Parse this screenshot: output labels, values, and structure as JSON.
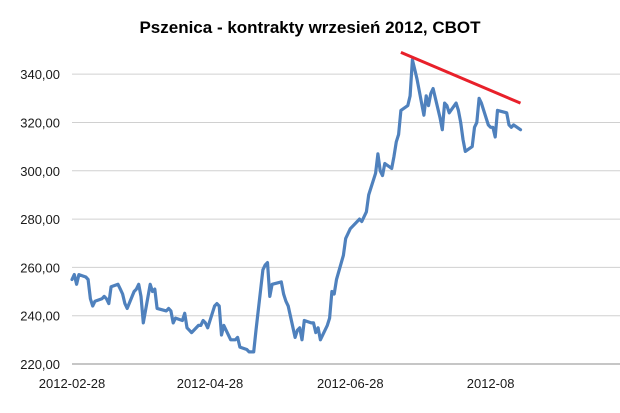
{
  "chart_data": {
    "type": "line",
    "title": "Pszenica - kontrakty wrzesień 2012, CBOT",
    "xlabel": "",
    "ylabel": "",
    "ylim": [
      220,
      350
    ],
    "y_ticks": [
      "220,00",
      "240,00",
      "260,00",
      "280,00",
      "300,00",
      "320,00",
      "340,00"
    ],
    "y_tick_values": [
      220,
      240,
      260,
      280,
      300,
      320,
      340
    ],
    "x_ticks": [
      "2012-02-28",
      "2012-04-28",
      "2012-06-28",
      "2012-08"
    ],
    "x_tick_dates": [
      "2012-02-28",
      "2012-04-28",
      "2012-06-28",
      "2012-08-28"
    ],
    "grid": "horizontal",
    "legend": "none",
    "colors": {
      "series": "#4f81bd",
      "trendline": "#e8202a",
      "grid": "#d0d0d0",
      "axis": "#8c8c8c"
    },
    "series": [
      {
        "values": [
          [
            "2012-02-28",
            255
          ],
          [
            "2012-02-29",
            257
          ],
          [
            "2012-03-01",
            253
          ],
          [
            "2012-03-02",
            257
          ],
          [
            "2012-03-05",
            256
          ],
          [
            "2012-03-06",
            255
          ],
          [
            "2012-03-07",
            247
          ],
          [
            "2012-03-08",
            244
          ],
          [
            "2012-03-09",
            246
          ],
          [
            "2012-03-12",
            247
          ],
          [
            "2012-03-13",
            248
          ],
          [
            "2012-03-14",
            247
          ],
          [
            "2012-03-15",
            245
          ],
          [
            "2012-03-16",
            252
          ],
          [
            "2012-03-19",
            253
          ],
          [
            "2012-03-20",
            251
          ],
          [
            "2012-03-21",
            249
          ],
          [
            "2012-03-22",
            245
          ],
          [
            "2012-03-23",
            243
          ],
          [
            "2012-03-26",
            250
          ],
          [
            "2012-03-27",
            251
          ],
          [
            "2012-03-28",
            253
          ],
          [
            "2012-03-29",
            248
          ],
          [
            "2012-03-30",
            237
          ],
          [
            "2012-04-02",
            253
          ],
          [
            "2012-04-03",
            250
          ],
          [
            "2012-04-04",
            251
          ],
          [
            "2012-04-05",
            243
          ],
          [
            "2012-04-09",
            242
          ],
          [
            "2012-04-10",
            243
          ],
          [
            "2012-04-11",
            242
          ],
          [
            "2012-04-12",
            237
          ],
          [
            "2012-04-13",
            239
          ],
          [
            "2012-04-16",
            238
          ],
          [
            "2012-04-17",
            241
          ],
          [
            "2012-04-18",
            235
          ],
          [
            "2012-04-19",
            234
          ],
          [
            "2012-04-20",
            233
          ],
          [
            "2012-04-23",
            236
          ],
          [
            "2012-04-24",
            236
          ],
          [
            "2012-04-25",
            238
          ],
          [
            "2012-04-26",
            237
          ],
          [
            "2012-04-27",
            235
          ],
          [
            "2012-04-30",
            244
          ],
          [
            "2012-05-01",
            245
          ],
          [
            "2012-05-02",
            244
          ],
          [
            "2012-05-03",
            232
          ],
          [
            "2012-05-04",
            236
          ],
          [
            "2012-05-07",
            230
          ],
          [
            "2012-05-08",
            230
          ],
          [
            "2012-05-09",
            230
          ],
          [
            "2012-05-10",
            231
          ],
          [
            "2012-05-11",
            227
          ],
          [
            "2012-05-14",
            226
          ],
          [
            "2012-05-15",
            225
          ],
          [
            "2012-05-16",
            225
          ],
          [
            "2012-05-17",
            225
          ],
          [
            "2012-05-18",
            234
          ],
          [
            "2012-05-21",
            259
          ],
          [
            "2012-05-22",
            261
          ],
          [
            "2012-05-23",
            262
          ],
          [
            "2012-05-24",
            248
          ],
          [
            "2012-05-25",
            253
          ],
          [
            "2012-05-29",
            254
          ],
          [
            "2012-05-30",
            249
          ],
          [
            "2012-05-31",
            246
          ],
          [
            "2012-06-01",
            244
          ],
          [
            "2012-06-04",
            231
          ],
          [
            "2012-06-05",
            234
          ],
          [
            "2012-06-06",
            235
          ],
          [
            "2012-06-07",
            230
          ],
          [
            "2012-06-08",
            238
          ],
          [
            "2012-06-11",
            237
          ],
          [
            "2012-06-12",
            237
          ],
          [
            "2012-06-13",
            233
          ],
          [
            "2012-06-14",
            235
          ],
          [
            "2012-06-15",
            230
          ],
          [
            "2012-06-18",
            236
          ],
          [
            "2012-06-19",
            239
          ],
          [
            "2012-06-20",
            250
          ],
          [
            "2012-06-21",
            249
          ],
          [
            "2012-06-22",
            255
          ],
          [
            "2012-06-25",
            265
          ],
          [
            "2012-06-26",
            272
          ],
          [
            "2012-06-27",
            274
          ],
          [
            "2012-06-28",
            276
          ],
          [
            "2012-06-29",
            277
          ],
          [
            "2012-07-02",
            280
          ],
          [
            "2012-07-03",
            279
          ],
          [
            "2012-07-05",
            283
          ],
          [
            "2012-07-06",
            290
          ],
          [
            "2012-07-09",
            299
          ],
          [
            "2012-07-10",
            307
          ],
          [
            "2012-07-11",
            300
          ],
          [
            "2012-07-12",
            298
          ],
          [
            "2012-07-13",
            303
          ],
          [
            "2012-07-16",
            301
          ],
          [
            "2012-07-17",
            306
          ],
          [
            "2012-07-18",
            312
          ],
          [
            "2012-07-19",
            315
          ],
          [
            "2012-07-20",
            325
          ],
          [
            "2012-07-23",
            327
          ],
          [
            "2012-07-24",
            331
          ],
          [
            "2012-07-25",
            346
          ],
          [
            "2012-07-26",
            342
          ],
          [
            "2012-07-27",
            338
          ],
          [
            "2012-07-30",
            323
          ],
          [
            "2012-07-31",
            331
          ],
          [
            "2012-08-01",
            327
          ],
          [
            "2012-08-02",
            332
          ],
          [
            "2012-08-03",
            334
          ],
          [
            "2012-08-06",
            322
          ],
          [
            "2012-08-07",
            317
          ],
          [
            "2012-08-08",
            328
          ],
          [
            "2012-08-09",
            327
          ],
          [
            "2012-08-10",
            324
          ],
          [
            "2012-08-13",
            328
          ],
          [
            "2012-08-14",
            325
          ],
          [
            "2012-08-15",
            320
          ],
          [
            "2012-08-16",
            313
          ],
          [
            "2012-08-17",
            308
          ],
          [
            "2012-08-20",
            310
          ],
          [
            "2012-08-21",
            318
          ],
          [
            "2012-08-22",
            320
          ],
          [
            "2012-08-23",
            330
          ],
          [
            "2012-08-24",
            328
          ],
          [
            "2012-08-27",
            319
          ],
          [
            "2012-08-28",
            318
          ],
          [
            "2012-08-29",
            318
          ],
          [
            "2012-08-30",
            314
          ],
          [
            "2012-08-31",
            325
          ],
          [
            "2012-09-04",
            324
          ],
          [
            "2012-09-05",
            319
          ],
          [
            "2012-09-06",
            318
          ],
          [
            "2012-09-07",
            319
          ],
          [
            "2012-09-10",
            317
          ]
        ]
      }
    ],
    "trendline": {
      "from": [
        "2012-07-20",
        349
      ],
      "to": [
        "2012-09-10",
        328
      ]
    }
  }
}
